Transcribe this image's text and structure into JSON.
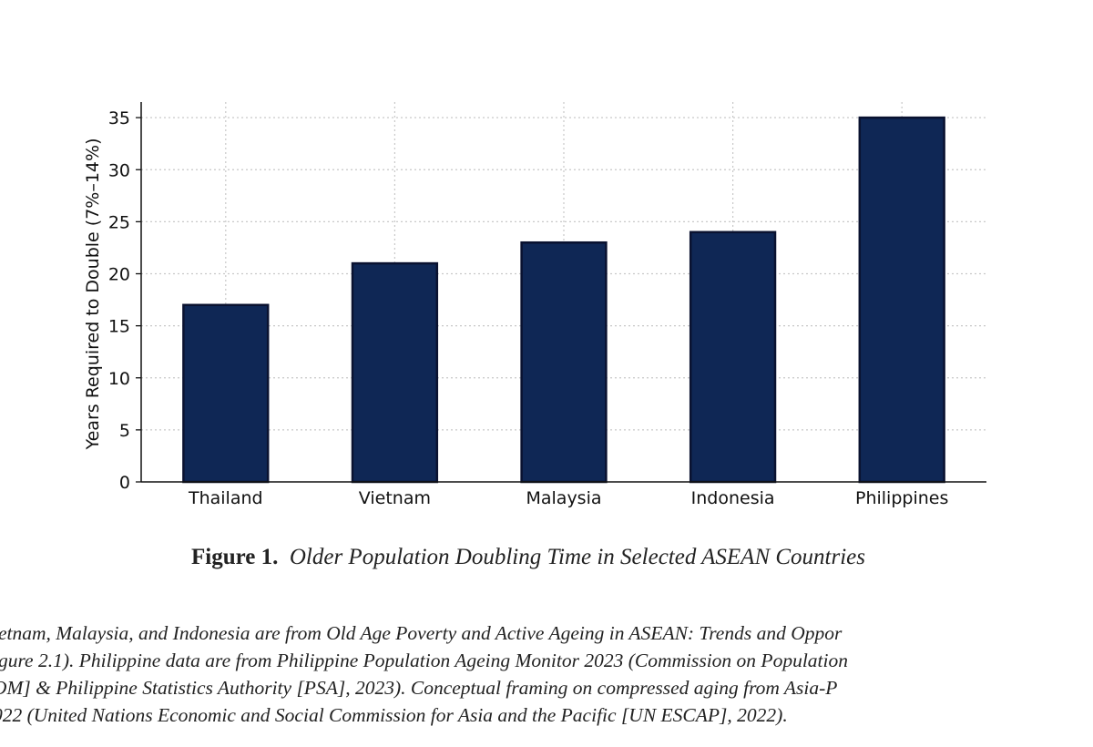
{
  "chart_data": {
    "type": "bar",
    "categories": [
      "Thailand",
      "Vietnam",
      "Malaysia",
      "Indonesia",
      "Philippines"
    ],
    "values": [
      17,
      21,
      23,
      24,
      35
    ],
    "ylabel": "Years Required to Double (7%–14%)",
    "ylim": [
      0,
      36.5
    ],
    "yticks": [
      0,
      5,
      10,
      15,
      20,
      25,
      30,
      35
    ],
    "grid": true,
    "bar_color": "#0f2755",
    "bar_edge_color": "#0a1230"
  },
  "figure": {
    "label": "Figure 1.",
    "title": "Older Population Doubling Time in Selected ASEAN Countries"
  },
  "note_lines": [
    "ietnam, Malaysia, and Indonesia are from Old Age Poverty and Active Ageing in ASEAN: Trends and Oppor",
    "igure 2.1). Philippine data are from Philippine Population Ageing Monitor 2023 (Commission on Population",
    "OM] & Philippine Statistics Authority [PSA], 2023). Conceptual framing on compressed aging from Asia-P",
    "022 (United Nations Economic and Social Commission for Asia and the Pacific [UN ESCAP], 2022)."
  ]
}
